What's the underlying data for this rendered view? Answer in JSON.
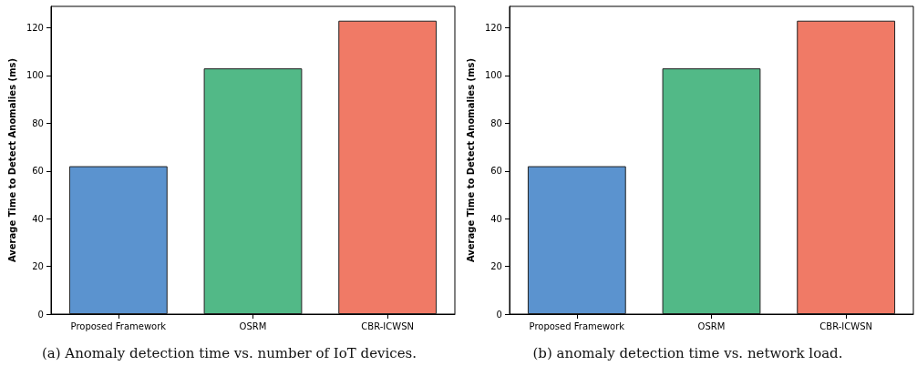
{
  "chart_data": [
    {
      "type": "bar",
      "title": "(a) Anomaly detection time vs. number of IoT devices.",
      "ylabel": "Average Time to Detect Anomalies (ms)",
      "categories": [
        "Proposed Framework",
        "OSRM",
        "CBR-ICWSN"
      ],
      "values": [
        62,
        103,
        123
      ],
      "colors": [
        "#5b93cf",
        "#52b987",
        "#f07a66"
      ],
      "ylim": [
        0,
        129
      ],
      "yticks": [
        0,
        20,
        40,
        60,
        80,
        100,
        120
      ],
      "grid": false
    },
    {
      "type": "bar",
      "title": "(b) anomaly detection time vs. network load.",
      "ylabel": "Average Time to Detect Anomalies (ms)",
      "categories": [
        "Proposed Framework",
        "OSRM",
        "CBR-ICWSN"
      ],
      "values": [
        62,
        103,
        123
      ],
      "colors": [
        "#5b93cf",
        "#52b987",
        "#f07a66"
      ],
      "ylim": [
        0,
        129
      ],
      "yticks": [
        0,
        20,
        40,
        60,
        80,
        100,
        120
      ],
      "grid": false
    }
  ]
}
